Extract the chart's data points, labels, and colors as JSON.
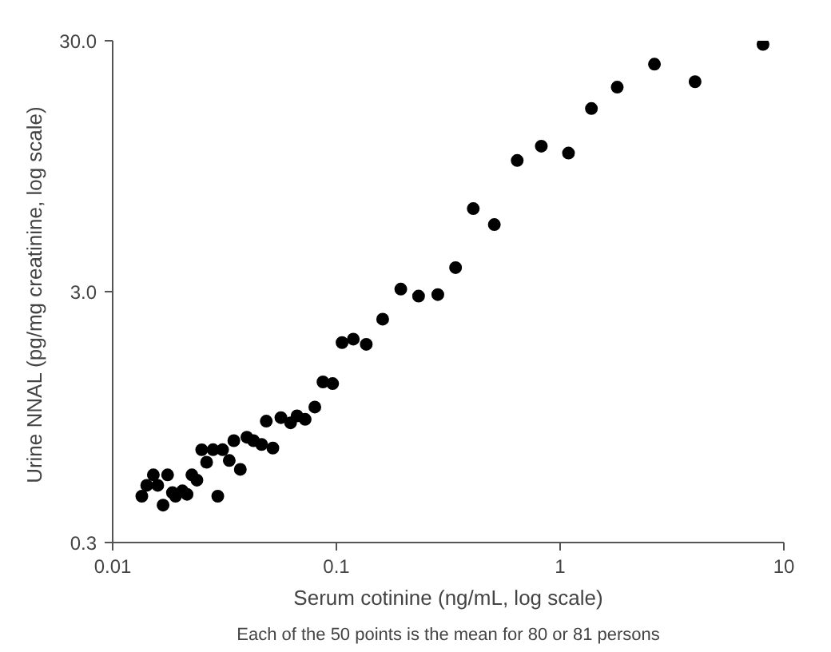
{
  "chart_data": {
    "type": "scatter",
    "xlabel": "Serum cotinine (ng/mL, log scale)",
    "ylabel": "Urine  NNAL (pg/mg creatinine, log scale)",
    "annotations": [
      "Each of the 50 points is the mean for 80 or 81 persons"
    ],
    "log": "xy",
    "grid": false,
    "marker": "circle",
    "xlim": [
      0.01,
      10
    ],
    "ylim": [
      0.3,
      30
    ],
    "xticks": [
      0.01,
      0.1,
      1,
      10
    ],
    "yticks": [
      0.3,
      {
        "value": 3,
        "label": "3.0"
      },
      {
        "value": 30,
        "label": "30.0"
      }
    ],
    "series": [
      {
        "color": "#000000",
        "x": [
          0.0135,
          0.0142,
          0.0152,
          0.0159,
          0.0168,
          0.0176,
          0.0185,
          0.0191,
          0.0205,
          0.0215,
          0.0226,
          0.0238,
          0.025,
          0.0263,
          0.0281,
          0.0295,
          0.031,
          0.0332,
          0.0348,
          0.0372,
          0.0398,
          0.0426,
          0.0463,
          0.0486,
          0.052,
          0.0565,
          0.0624,
          0.0667,
          0.0725,
          0.0801,
          0.0871,
          0.0962,
          0.106,
          0.119,
          0.136,
          0.161,
          0.194,
          0.233,
          0.284,
          0.341,
          0.409,
          0.508,
          0.643,
          0.824,
          1.09,
          1.38,
          1.8,
          2.64,
          4.01,
          8.07
        ],
        "values": [
          0.459,
          0.507,
          0.558,
          0.507,
          0.423,
          0.558,
          0.474,
          0.459,
          0.482,
          0.467,
          0.558,
          0.532,
          0.703,
          0.627,
          0.703,
          0.459,
          0.703,
          0.637,
          0.764,
          0.587,
          0.789,
          0.764,
          0.738,
          0.914,
          0.714,
          0.944,
          0.9,
          0.959,
          0.929,
          1.04,
          1.31,
          1.29,
          1.88,
          1.94,
          1.85,
          2.33,
          3.07,
          2.88,
          2.92,
          3.74,
          6.43,
          5.55,
          10.0,
          11.4,
          10.7,
          16.1,
          19.6,
          24.2,
          20.6,
          29.0
        ]
      }
    ]
  }
}
